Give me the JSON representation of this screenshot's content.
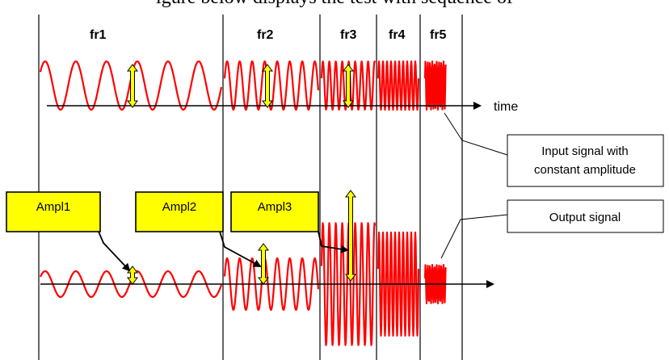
{
  "caption": "igure below displays the test with sequence of",
  "frequency_labels": [
    "fr1",
    "fr2",
    "fr3",
    "fr4",
    "fr5"
  ],
  "time_axis_label": "time",
  "amplitude_boxes": [
    "Ampl1",
    "Ampl2",
    "Ampl3"
  ],
  "callouts": {
    "input_signal": [
      "Input signal with",
      "constant amplitude"
    ],
    "output_signal": "Output signal"
  },
  "signal_color": "#ff0000",
  "marker_color": "#ffff00",
  "box_fill_color": "#ffff00"
}
